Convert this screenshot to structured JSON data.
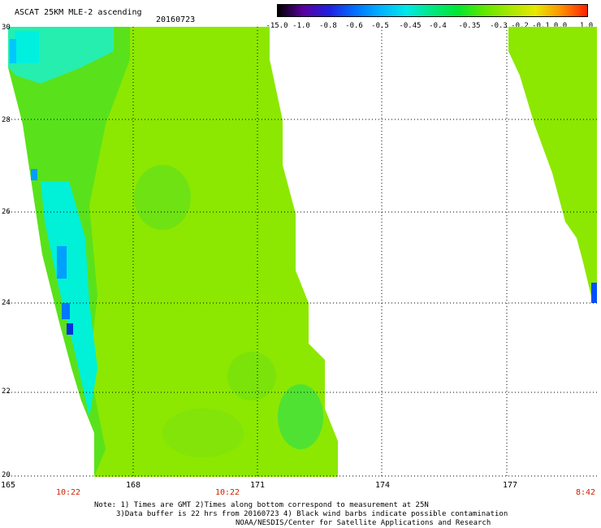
{
  "header": {
    "title": "ASCAT 25KM MLE-2 ascending",
    "date": "20160723"
  },
  "colorbar": {
    "labels": [
      "-15.0",
      "-1.0",
      "-0.8",
      "-0.6",
      "-0.5",
      "-0.45",
      "-0.4",
      "-0.35",
      "-0.3",
      "-0.2",
      "-0.1",
      "0.0",
      "1.0"
    ],
    "colors": [
      "#000000",
      "#5a00a0",
      "#2020e0",
      "#0070ff",
      "#00b4ff",
      "#00e8e8",
      "#00e880",
      "#00e830",
      "#60e800",
      "#a8e800",
      "#e8e800",
      "#ff9000",
      "#ff2000"
    ]
  },
  "map": {
    "lat_labels": [
      "30",
      "28",
      "26",
      "24",
      "22",
      "20"
    ],
    "lon_labels": [
      "165",
      "168",
      "171",
      "174",
      "177"
    ],
    "time_labels": [
      "10:22",
      "10:22",
      "8:42"
    ],
    "swath_colors": {
      "base": "#8ce800",
      "dark_green": "#50e020",
      "cyan": "#00f0e0",
      "blue": "#0060ff"
    }
  },
  "notes": {
    "line1": "Note: 1) Times are GMT 2)Times along bottom correspond to measurement at 25N",
    "line2": "3)Data buffer is 22 hrs from 20160723 4) Black wind barbs indicate possible contamination",
    "line3": "NOAA/NESDIS/Center for Satellite Applications and Research"
  }
}
